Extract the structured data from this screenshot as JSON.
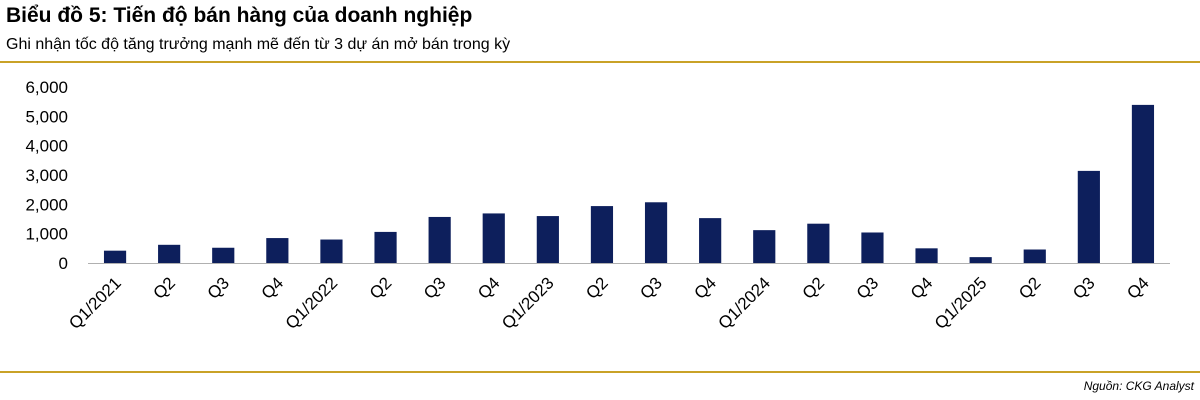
{
  "header": {
    "title": "Biểu đồ 5: Tiến độ bán hàng của doanh nghiệp",
    "subtitle": "Ghi nhận tốc độ tăng trưởng mạnh mẽ đến từ 3 dự án mở bán trong kỳ"
  },
  "footer": {
    "source": "Nguồn: CKG Analyst"
  },
  "colors": {
    "bar": "#0d1f5c",
    "rule": "#c9a227",
    "axis": "#b0b0b0",
    "text": "#000000"
  },
  "chart_data": {
    "type": "bar",
    "title": "",
    "xlabel": "",
    "ylabel": "",
    "categories": [
      "Q1/2021",
      "Q2",
      "Q3",
      "Q4",
      "Q1/2022",
      "Q2",
      "Q3",
      "Q4",
      "Q1/2023",
      "Q2",
      "Q3",
      "Q4",
      "Q1/2024",
      "Q2",
      "Q3",
      "Q4",
      "Q1/2025",
      "Q2",
      "Q3",
      "Q4"
    ],
    "values": [
      420,
      620,
      520,
      850,
      800,
      1060,
      1570,
      1690,
      1600,
      1940,
      2070,
      1530,
      1120,
      1340,
      1040,
      500,
      200,
      460,
      3140,
      5390
    ],
    "ylim": [
      0,
      6000
    ],
    "yticks": [
      0,
      1000,
      2000,
      3000,
      4000,
      5000,
      6000
    ],
    "ytick_labels": [
      "0",
      "1,000",
      "2,000",
      "3,000",
      "4,000",
      "5,000",
      "6,000"
    ],
    "grid": false,
    "legend": "none"
  }
}
